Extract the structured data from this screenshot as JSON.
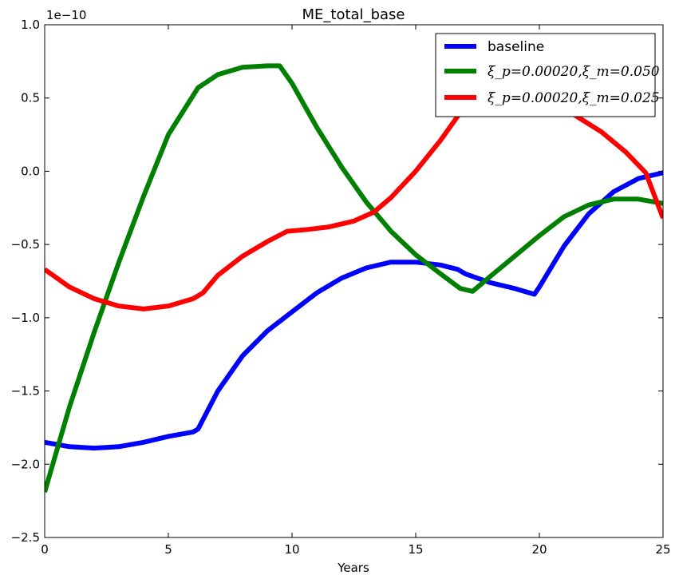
{
  "chart_data": {
    "type": "line",
    "title": "ME_total_base",
    "xlabel": "Years",
    "ylabel": "",
    "offset_text": "1e−10",
    "xlim": [
      0,
      25
    ],
    "ylim": [
      -2.5,
      1.0
    ],
    "xticks": [
      0,
      5,
      10,
      15,
      20,
      25
    ],
    "xtick_labels": [
      "0",
      "5",
      "10",
      "15",
      "20",
      "25"
    ],
    "yticks": [
      -2.5,
      -2.0,
      -1.5,
      -1.0,
      -0.5,
      0.0,
      0.5,
      1.0
    ],
    "ytick_labels": [
      "−2.5",
      "−2.0",
      "−1.5",
      "−1.0",
      "−0.5",
      "0.0",
      "0.5",
      "1.0"
    ],
    "grid": false,
    "legend_position": "top-right",
    "series": [
      {
        "name": "baseline",
        "color": "#0000ff",
        "x": [
          0,
          1,
          2,
          3,
          4,
          5,
          6,
          6.2,
          7,
          8,
          9,
          10,
          11,
          12,
          13,
          14,
          15,
          16,
          16.7,
          17,
          17.5,
          18,
          19,
          19.8,
          20,
          21,
          22,
          23,
          24,
          25
        ],
        "y": [
          -1.85,
          -1.88,
          -1.89,
          -1.88,
          -1.85,
          -1.81,
          -1.78,
          -1.76,
          -1.5,
          -1.26,
          -1.09,
          -0.96,
          -0.83,
          -0.73,
          -0.66,
          -0.62,
          -0.62,
          -0.64,
          -0.67,
          -0.7,
          -0.73,
          -0.76,
          -0.8,
          -0.84,
          -0.79,
          -0.51,
          -0.29,
          -0.14,
          -0.05,
          -0.01
        ]
      },
      {
        "name": "ξ_p=0.00020,ξ_m=0.050",
        "color": "#008000",
        "x": [
          0,
          1,
          2,
          3,
          4,
          5,
          6.2,
          7,
          8,
          9,
          9.5,
          10,
          11,
          12,
          13,
          14,
          15,
          16,
          16.8,
          17.3,
          18,
          19,
          20,
          21,
          22,
          23,
          24,
          25
        ],
        "y": [
          -2.19,
          -1.61,
          -1.1,
          -0.62,
          -0.17,
          0.25,
          0.57,
          0.66,
          0.71,
          0.72,
          0.72,
          0.6,
          0.3,
          0.03,
          -0.21,
          -0.41,
          -0.57,
          -0.7,
          -0.8,
          -0.82,
          -0.72,
          -0.58,
          -0.44,
          -0.31,
          -0.23,
          -0.19,
          -0.19,
          -0.22
        ]
      },
      {
        "name": "ξ_p=0.00020,ξ_m=0.025",
        "color": "#ff0000",
        "x": [
          0,
          1,
          2,
          3,
          4,
          5,
          6,
          6.4,
          7,
          8,
          9,
          9.8,
          10.5,
          11.5,
          12.5,
          13.3,
          14,
          15,
          16,
          16.8,
          20.8,
          22.5,
          23.5,
          24.3,
          25
        ],
        "y": [
          -0.67,
          -0.79,
          -0.87,
          -0.92,
          -0.94,
          -0.92,
          -0.87,
          -0.83,
          -0.71,
          -0.58,
          -0.48,
          -0.41,
          -0.4,
          -0.38,
          -0.34,
          -0.28,
          -0.18,
          0.0,
          0.21,
          0.4,
          0.45,
          0.27,
          0.13,
          -0.01,
          -0.32
        ]
      }
    ]
  }
}
